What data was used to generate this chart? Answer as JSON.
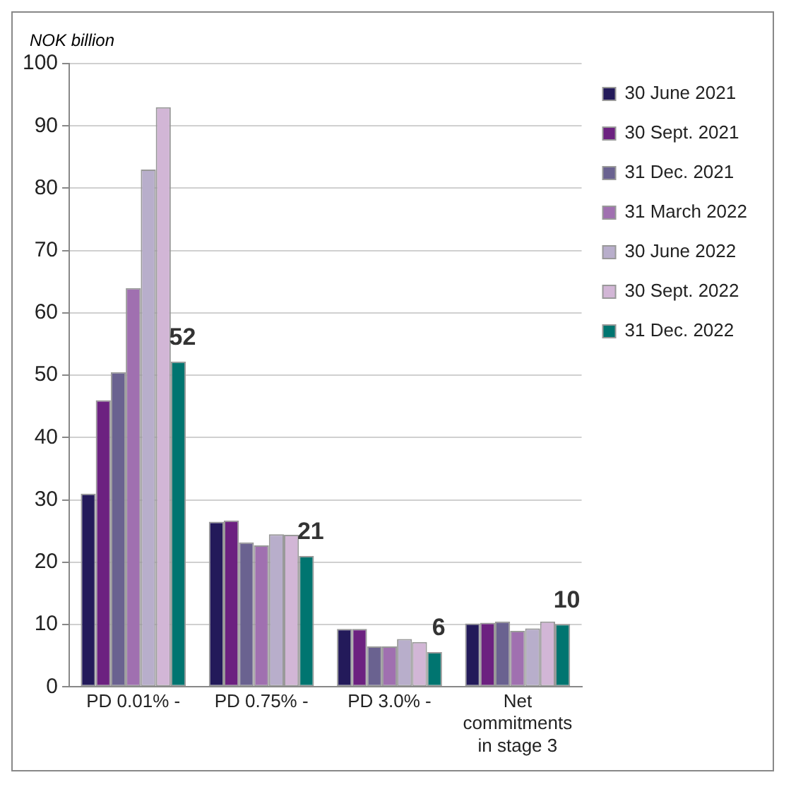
{
  "chart_data": {
    "type": "bar",
    "ylabel": "NOK billion",
    "categories": [
      "PD 0.01% -",
      "PD 0.75% -",
      "PD 3.0% -",
      "Net commitments in stage 3"
    ],
    "series": [
      {
        "name": "30 June 2021",
        "color": "#231a5a",
        "values": [
          31,
          26.5,
          9.3,
          10.2
        ]
      },
      {
        "name": "30 Sept. 2021",
        "color": "#6c2180",
        "values": [
          46,
          26.7,
          9.3,
          10.3
        ]
      },
      {
        "name": "31 Dec. 2021",
        "color": "#6a6290",
        "values": [
          50.5,
          23.2,
          6.5,
          10.5
        ]
      },
      {
        "name": "31 March 2022",
        "color": "#a070b0",
        "values": [
          64,
          22.7,
          6.5,
          9
        ]
      },
      {
        "name": "30 June 2022",
        "color": "#b8aecb",
        "values": [
          83,
          24.5,
          7.7,
          9.4
        ]
      },
      {
        "name": "30 Sept. 2022",
        "color": "#d2b6d6",
        "values": [
          93,
          24.4,
          7.2,
          10.5
        ]
      },
      {
        "name": "31 Dec. 2022",
        "color": "#007570",
        "values": [
          52.2,
          21,
          5.6,
          10.1
        ],
        "value_labels": [
          "52",
          "21",
          "6",
          "10"
        ]
      }
    ],
    "ylim": [
      0,
      100
    ],
    "yticks": [
      0,
      10,
      20,
      30,
      40,
      50,
      60,
      70,
      80,
      90,
      100
    ],
    "grid": "y",
    "legend": "right"
  }
}
